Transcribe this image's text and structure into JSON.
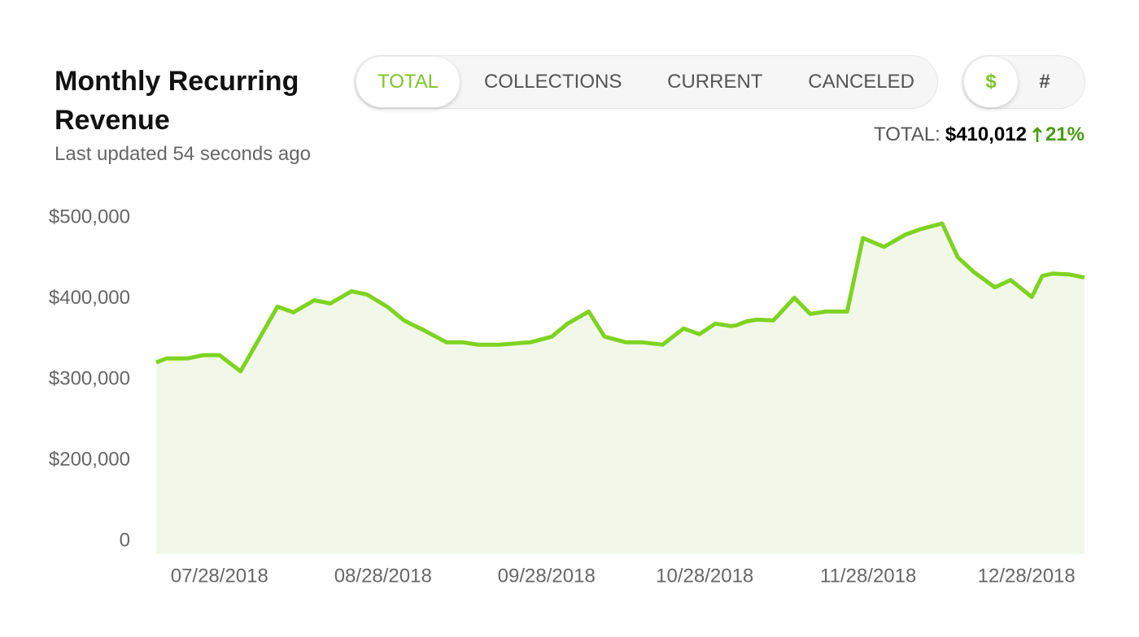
{
  "header": {
    "title": "Monthly Recurring Revenue",
    "subtitle": "Last updated 54 seconds ago"
  },
  "tabs": {
    "items": [
      "TOTAL",
      "COLLECTIONS",
      "CURRENT",
      "CANCELED"
    ],
    "active": 0
  },
  "units": {
    "items": [
      "$",
      "#"
    ],
    "active": 0
  },
  "summary": {
    "label": "TOTAL:",
    "value": "$410,012",
    "change": "21%"
  },
  "chart_data": {
    "type": "line",
    "color": "#7ed321",
    "fill": "#f2f8e9",
    "x": [
      "07/16/2018",
      "07/18/2018",
      "07/22/2018",
      "07/25/2018",
      "07/28/2018",
      "08/01/2018",
      "08/08/2018",
      "08/11/2018",
      "08/15/2018",
      "08/18/2018",
      "08/22/2018",
      "08/25/2018",
      "08/29/2018",
      "09/01/2018",
      "09/05/2018",
      "09/09/2018",
      "09/12/2018",
      "09/15/2018",
      "09/19/2018",
      "09/25/2018",
      "09/29/2018",
      "10/02/2018",
      "10/06/2018",
      "10/09/2018",
      "10/13/2018",
      "10/16/2018",
      "10/20/2018",
      "10/24/2018",
      "10/27/2018",
      "10/30/2018",
      "11/02/2018",
      "11/03/2018",
      "11/05/2018",
      "11/07/2018",
      "11/10/2018",
      "11/14/2018",
      "11/17/2018",
      "11/20/2018",
      "11/24/2018",
      "11/27/2018",
      "12/01/2018",
      "12/05/2018",
      "12/08/2018",
      "12/12/2018",
      "12/15/2018",
      "12/18/2018",
      "12/22/2018",
      "12/25/2018",
      "12/29/2018",
      "12/31/2018",
      "01/02/2019",
      "01/05/2019",
      "01/08/2019"
    ],
    "values": [
      321000,
      326000,
      326000,
      330000,
      330000,
      310000,
      390000,
      383000,
      398000,
      394000,
      409000,
      405000,
      389000,
      373000,
      360000,
      346000,
      346000,
      343000,
      343000,
      346000,
      353000,
      369000,
      384000,
      353000,
      346000,
      346000,
      343000,
      363000,
      356000,
      369000,
      366000,
      367000,
      372000,
      374000,
      373000,
      401000,
      381000,
      384000,
      384000,
      475000,
      464000,
      479000,
      486000,
      493000,
      451000,
      433000,
      414000,
      423000,
      402000,
      428000,
      431000,
      430000,
      426000
    ],
    "xlim": [
      "07/16/2018",
      "01/08/2019"
    ],
    "xticks": [
      "07/28/2018",
      "08/28/2018",
      "09/28/2018",
      "10/28/2018",
      "11/28/2018",
      "12/28/2018"
    ],
    "ylim": [
      0,
      500000
    ],
    "yticks": [
      0,
      {
        "value": 200000,
        "label": "$200,000"
      },
      {
        "value": 300000,
        "label": "$300,000"
      },
      {
        "value": 400000,
        "label": "$400,000"
      },
      {
        "value": 500000,
        "label": "$500,000"
      }
    ]
  }
}
